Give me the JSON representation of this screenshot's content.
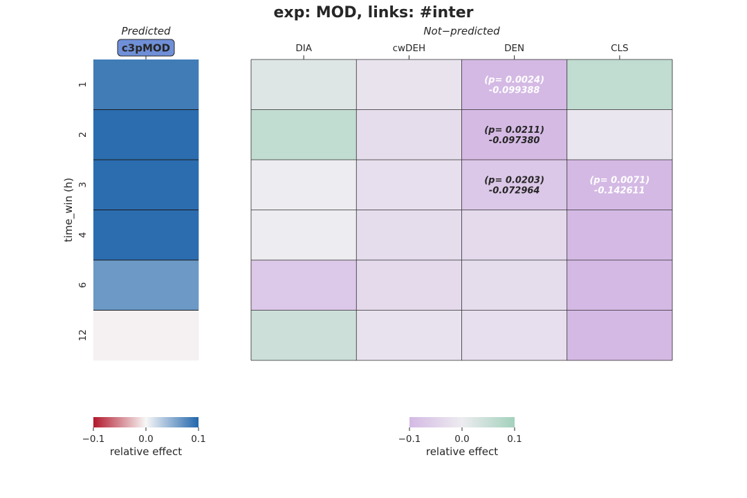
{
  "title": "exp: MOD, links: #inter",
  "chart_data": [
    {
      "type": "heatmap",
      "subtitle": "Predicted",
      "columns": [
        "c3pMOD"
      ],
      "rows": [
        "1",
        "2",
        "3",
        "4",
        "6",
        "12"
      ],
      "ylabel": "time_win (h)",
      "values": [
        [
          0.085
        ],
        [
          0.095
        ],
        [
          0.095
        ],
        [
          0.095
        ],
        [
          0.065
        ],
        [
          -0.003
        ]
      ],
      "colormap": {
        "low": "#b2182b",
        "mid": "#f7f7f7",
        "high": "#2166ac"
      },
      "vlim": [
        -0.1,
        0.1
      ],
      "colorbar": {
        "label": "relative effect",
        "ticks": [
          "−0.1",
          "0.0",
          "0.1"
        ]
      }
    },
    {
      "type": "heatmap",
      "subtitle": "Not−predicted",
      "columns": [
        "DIA",
        "cwDEH",
        "DEN",
        "CLS"
      ],
      "rows": [
        "1",
        "2",
        "3",
        "4",
        "6",
        "12"
      ],
      "values": [
        [
          0.022,
          -0.018,
          -0.099388,
          0.06
        ],
        [
          0.06,
          -0.03,
          -0.09738,
          -0.012
        ],
        [
          0.0,
          -0.025,
          -0.072964,
          -0.142611
        ],
        [
          0.0,
          -0.032,
          -0.035,
          -0.1
        ],
        [
          -0.07,
          -0.035,
          -0.03,
          -0.1
        ],
        [
          0.045,
          -0.02,
          -0.025,
          -0.1
        ]
      ],
      "annotations": [
        {
          "row": 0,
          "col": 2,
          "p": "(p= 0.0024)",
          "value": "-0.099388",
          "color": "#ffffff"
        },
        {
          "row": 1,
          "col": 2,
          "p": "(p= 0.0211)",
          "value": "-0.097380",
          "color": "#262626"
        },
        {
          "row": 2,
          "col": 2,
          "p": "(p= 0.0203)",
          "value": "-0.072964",
          "color": "#262626"
        },
        {
          "row": 2,
          "col": 3,
          "p": "(p= 0.0071)",
          "value": "-0.142611",
          "color": "#ffffff"
        }
      ],
      "colormap": {
        "low": "#d4b9e4",
        "mid": "#edecf0",
        "high": "#a3d1bc"
      },
      "vlim": [
        -0.1,
        0.1
      ],
      "colorbar": {
        "label": "relative effect",
        "ticks": [
          "−0.1",
          "0.0",
          "0.1"
        ]
      }
    }
  ]
}
